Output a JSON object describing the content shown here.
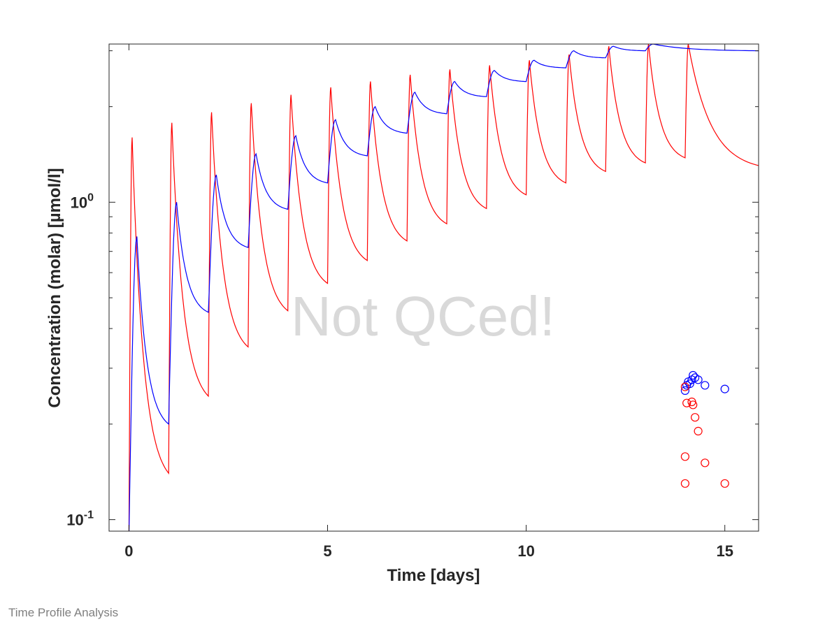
{
  "footer_text": "Time Profile Analysis",
  "chart_data": {
    "type": "line",
    "title": "",
    "xlabel": "Time [days]",
    "ylabel": "Concentration (molar) [µmol/l]",
    "xlim": [
      -0.5,
      15.85
    ],
    "ylim": [
      0.092,
      3.15
    ],
    "y_scale": "log",
    "x_ticks": [
      0,
      5,
      10,
      15
    ],
    "x_tick_labels": [
      "0",
      "5",
      "10",
      "15"
    ],
    "y_major_ticks": [
      0.1,
      1
    ],
    "y_tick_labels": [
      {
        "base": "10",
        "exp": "-1"
      },
      {
        "base": "10",
        "exp": "0"
      }
    ],
    "y_minor_ticks": [
      0.2,
      0.3,
      0.4,
      0.5,
      0.6,
      0.7,
      0.8,
      0.9,
      2,
      3
    ],
    "grid": false,
    "watermark": "Not QCed!",
    "colors": {
      "series_red": "#ff0000",
      "series_blue": "#0000ff",
      "axis": "#262626",
      "watermark": "#d9d9d9"
    },
    "series": [
      {
        "type": "line",
        "color": "#ff0000",
        "dose_interval_days": 1,
        "n_doses": 15,
        "peak_offset_days": 0.08,
        "peaks": [
          1.6,
          1.78,
          1.92,
          2.05,
          2.18,
          2.3,
          2.4,
          2.52,
          2.62,
          2.7,
          2.8,
          2.92,
          3.1,
          3.15,
          3.15
        ],
        "troughs": [
          0.14,
          0.245,
          0.35,
          0.455,
          0.555,
          0.655,
          0.755,
          0.855,
          0.955,
          1.055,
          1.15,
          1.25,
          1.33,
          1.38
        ],
        "end_value": 1.3
      },
      {
        "type": "line",
        "color": "#0000ff",
        "dose_interval_days": 1,
        "n_doses": 14,
        "peak_offset_days": 0.2,
        "peaks": [
          0.78,
          1.0,
          1.22,
          1.42,
          1.62,
          1.82,
          2.0,
          2.22,
          2.4,
          2.6,
          2.8,
          3.0,
          3.1,
          3.15
        ],
        "troughs": [
          0.2,
          0.45,
          0.72,
          0.95,
          1.15,
          1.4,
          1.65,
          1.9,
          2.15,
          2.4,
          2.65,
          2.85,
          3.0,
          3.1
        ]
      },
      {
        "type": "scatter",
        "marker": "open-circle",
        "color": "#0000ff",
        "x": [
          14.0,
          14.04,
          14.08,
          14.12,
          14.17,
          14.2,
          14.25,
          14.33,
          14.5,
          15.0
        ],
        "y": [
          0.255,
          0.265,
          0.272,
          0.268,
          0.276,
          0.285,
          0.28,
          0.276,
          0.265,
          0.258
        ]
      },
      {
        "type": "scatter",
        "marker": "open-circle",
        "color": "#ff0000",
        "x": [
          14.0,
          14.04,
          14.17,
          14.2,
          14.25,
          14.33,
          14.0,
          14.5,
          14.0,
          15.0
        ],
        "y": [
          0.262,
          0.233,
          0.235,
          0.23,
          0.21,
          0.19,
          0.158,
          0.151,
          0.13,
          0.13
        ]
      }
    ]
  }
}
